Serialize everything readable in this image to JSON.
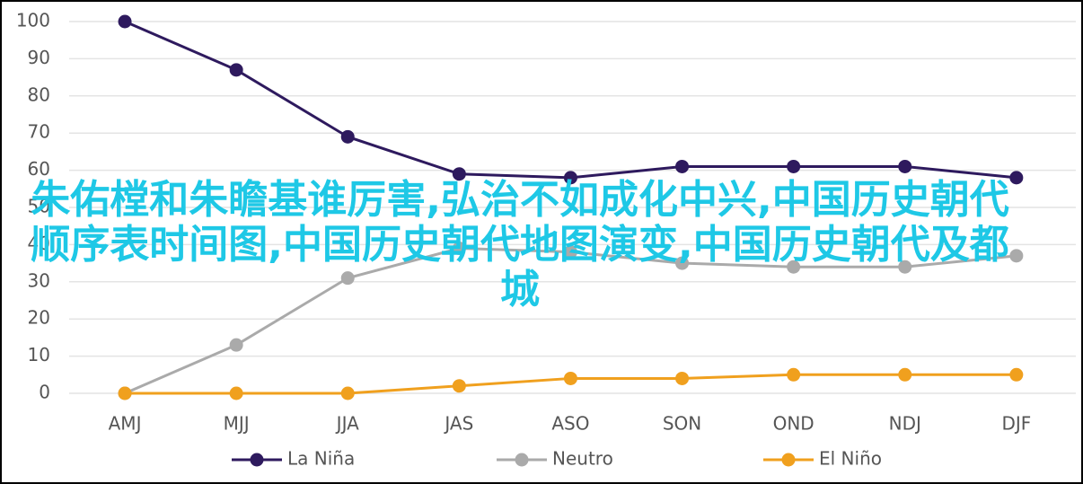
{
  "chart_data": {
    "type": "line",
    "categories": [
      "AMJ",
      "MJJ",
      "JJA",
      "JAS",
      "ASO",
      "SON",
      "OND",
      "NDJ",
      "DJF"
    ],
    "series": [
      {
        "name": "La Niña",
        "color": "#2e1a5e",
        "values": [
          100,
          87,
          69,
          59,
          58,
          61,
          61,
          61,
          58
        ]
      },
      {
        "name": "Neutro",
        "color": "#aaaaaa",
        "values": [
          0,
          13,
          31,
          39,
          38,
          35,
          34,
          34,
          37
        ]
      },
      {
        "name": "El Niño",
        "color": "#f0a01e",
        "values": [
          0,
          0,
          0,
          2,
          4,
          4,
          5,
          5,
          5
        ]
      }
    ],
    "ylim": [
      0,
      100
    ],
    "yticks": [
      0,
      10,
      20,
      30,
      40,
      50,
      60,
      70,
      80,
      90,
      100
    ],
    "grid": true,
    "legend": "bottom",
    "annotation": "朱佑樘和朱瞻基谁厉害,弘治不如成化中兴,中国历史朝代顺序表时间图,中国历史朝代地图演变,中国历史朝代及都城"
  }
}
